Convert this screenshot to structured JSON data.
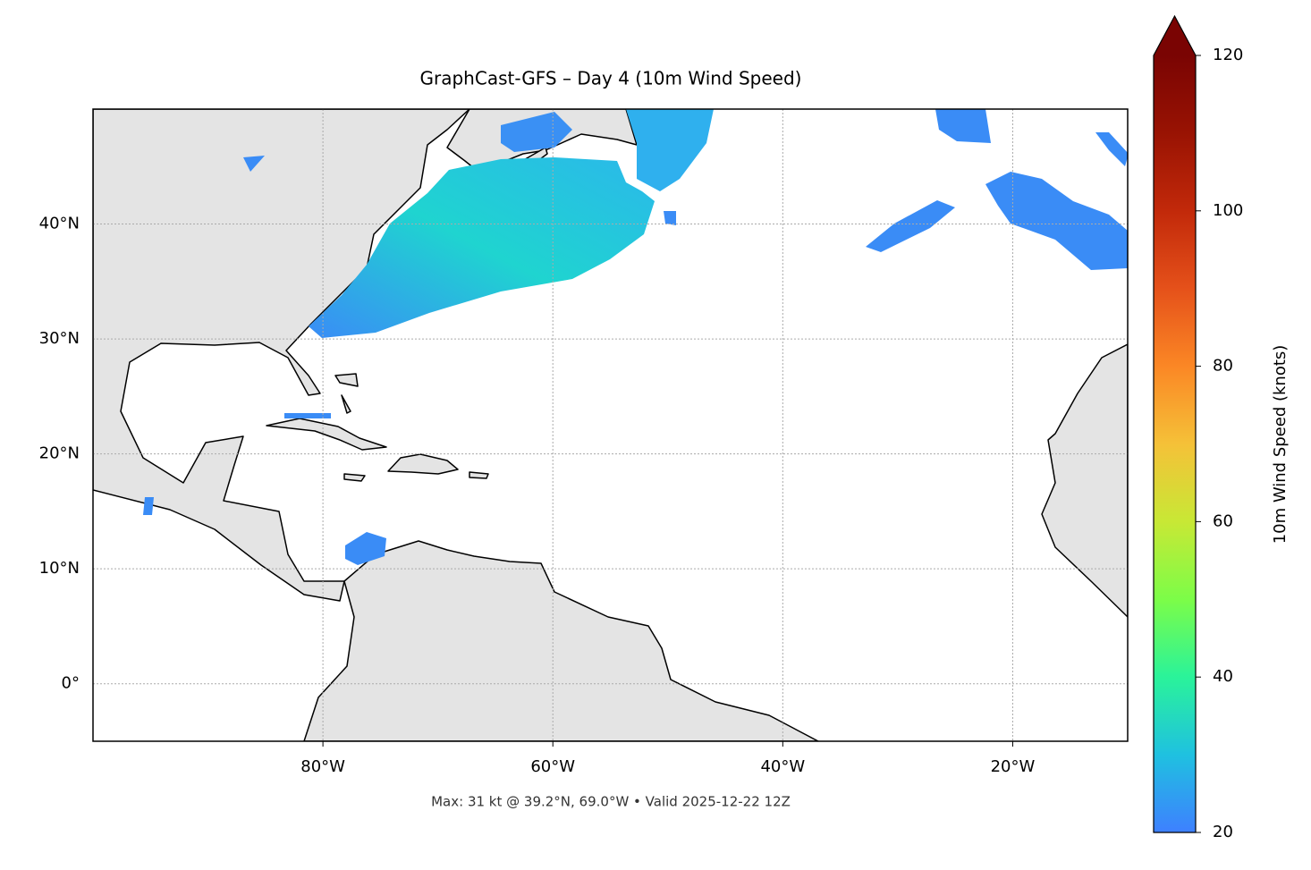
{
  "chart_data": {
    "type": "map",
    "title": "GraphCast-GFS – Day 4 (10m Wind Speed)",
    "caption": "Max: 31 kt @ 39.2°N, 69.0°W • Valid 2025-12-22 12Z",
    "xlim": [
      -100,
      -10
    ],
    "ylim": [
      -5,
      50
    ],
    "xticks": [
      {
        "value": -80,
        "label": "80°W"
      },
      {
        "value": -60,
        "label": "60°W"
      },
      {
        "value": -40,
        "label": "40°W"
      },
      {
        "value": -20,
        "label": "20°W"
      }
    ],
    "yticks": [
      {
        "value": 0,
        "label": "0°"
      },
      {
        "value": 10,
        "label": "10°N"
      },
      {
        "value": 20,
        "label": "20°N"
      },
      {
        "value": 30,
        "label": "30°N"
      },
      {
        "value": 40,
        "label": "40°N"
      }
    ],
    "grid": true,
    "colorbar": {
      "label": "10m Wind Speed (knots)",
      "lim": [
        20,
        120
      ],
      "ticks": [
        20,
        40,
        60,
        80,
        100,
        120
      ],
      "extend": "max",
      "colors": [
        "#3e80ff",
        "#1fc1e0",
        "#2af39a",
        "#7cfd48",
        "#c8e835",
        "#f5c138",
        "#fb8725",
        "#e5511a",
        "#c2290a",
        "#991303",
        "#7a0403"
      ]
    }
  }
}
